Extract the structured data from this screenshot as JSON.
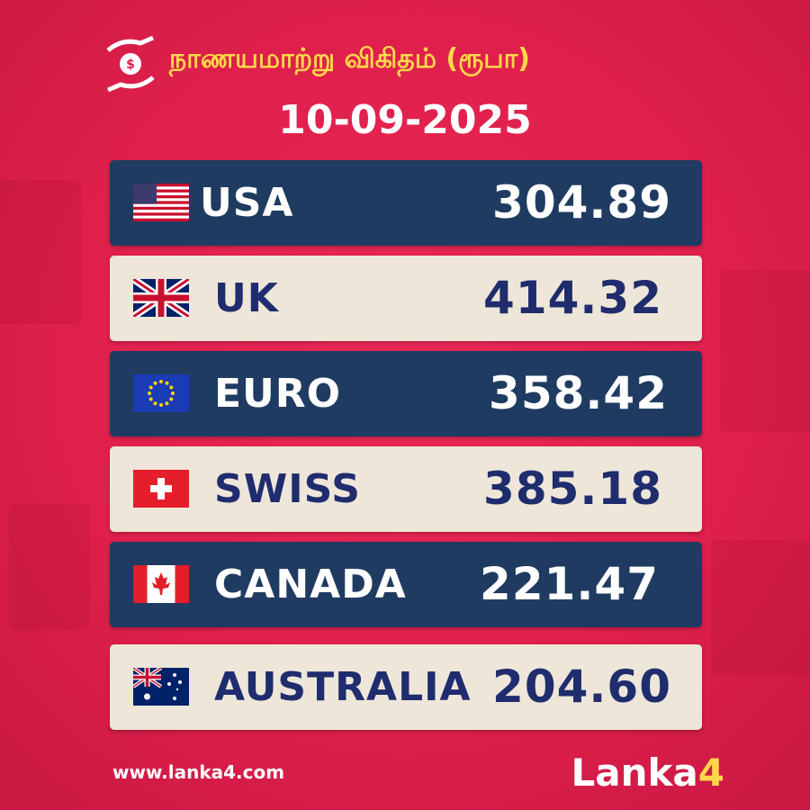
{
  "header": {
    "title": "நாணயமாற்று விகிதம் (ரூபா)",
    "date": "10-09-2025"
  },
  "rows": [
    {
      "country": "USA",
      "rate": "304.89"
    },
    {
      "country": "UK",
      "rate": "414.32"
    },
    {
      "country": "EURO",
      "rate": "358.42"
    },
    {
      "country": "SWISS",
      "rate": "385.18"
    },
    {
      "country": "CANADA",
      "rate": "221.47"
    },
    {
      "country": "AUSTRALIA",
      "rate": "204.60"
    }
  ],
  "footer": {
    "website": "www.lanka4.com",
    "brand": [
      "Lanka",
      "4"
    ]
  }
}
